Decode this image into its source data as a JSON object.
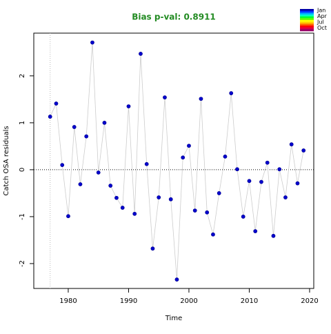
{
  "chart_data": {
    "type": "line",
    "title": "Bias p-val: 0.8911",
    "x_label": "Time",
    "y_label": "Catch OSA residuals",
    "x": [
      1977,
      1978,
      1979,
      1980,
      1981,
      1982,
      1983,
      1984,
      1985,
      1986,
      1987,
      1988,
      1989,
      1990,
      1991,
      1992,
      1993,
      1994,
      1995,
      1996,
      1997,
      1998,
      1999,
      2000,
      2001,
      2002,
      2003,
      2004,
      2005,
      2006,
      2007,
      2008,
      2009,
      2010,
      2011,
      2012,
      2013,
      2014,
      2015,
      2016,
      2017,
      2018,
      2019
    ],
    "series": [
      {
        "color": "#0000cd",
        "line_color": "#cccccc",
        "values": [
          1.13,
          1.41,
          0.1,
          -0.99,
          0.91,
          -0.31,
          0.71,
          2.71,
          -0.06,
          1.0,
          -0.34,
          -0.6,
          -0.81,
          1.35,
          -0.94,
          2.47,
          0.12,
          -1.68,
          -0.59,
          1.54,
          -0.63,
          -2.34,
          0.26,
          0.51,
          -0.87,
          1.51,
          -0.91,
          -1.38,
          -0.5,
          0.28,
          1.63,
          0.01,
          -1.0,
          -0.24,
          -1.31,
          -0.26,
          0.15,
          -1.41,
          0.01,
          -0.59,
          0.54,
          -0.29,
          0.41
        ]
      }
    ],
    "xlim": [
      1974.29,
      2020.69
    ],
    "ylim": [
      -2.53,
      2.91
    ],
    "xticks": [
      1980,
      1990,
      2000,
      2010,
      2020
    ],
    "yticks": [
      -2,
      -1,
      0,
      1,
      2
    ],
    "vline": 1977,
    "hline": 0,
    "legend": {
      "labels": [
        "Jan",
        "Apr",
        "Jul",
        "Oct"
      ],
      "colors": [
        "#0000aa",
        "#0033ff",
        "#00aaff",
        "#00ffcc",
        "#00ff33",
        "#66ff00",
        "#ffff00",
        "#ffcc00",
        "#ff6600",
        "#ff0000",
        "#dd0044",
        "#990066"
      ]
    }
  }
}
